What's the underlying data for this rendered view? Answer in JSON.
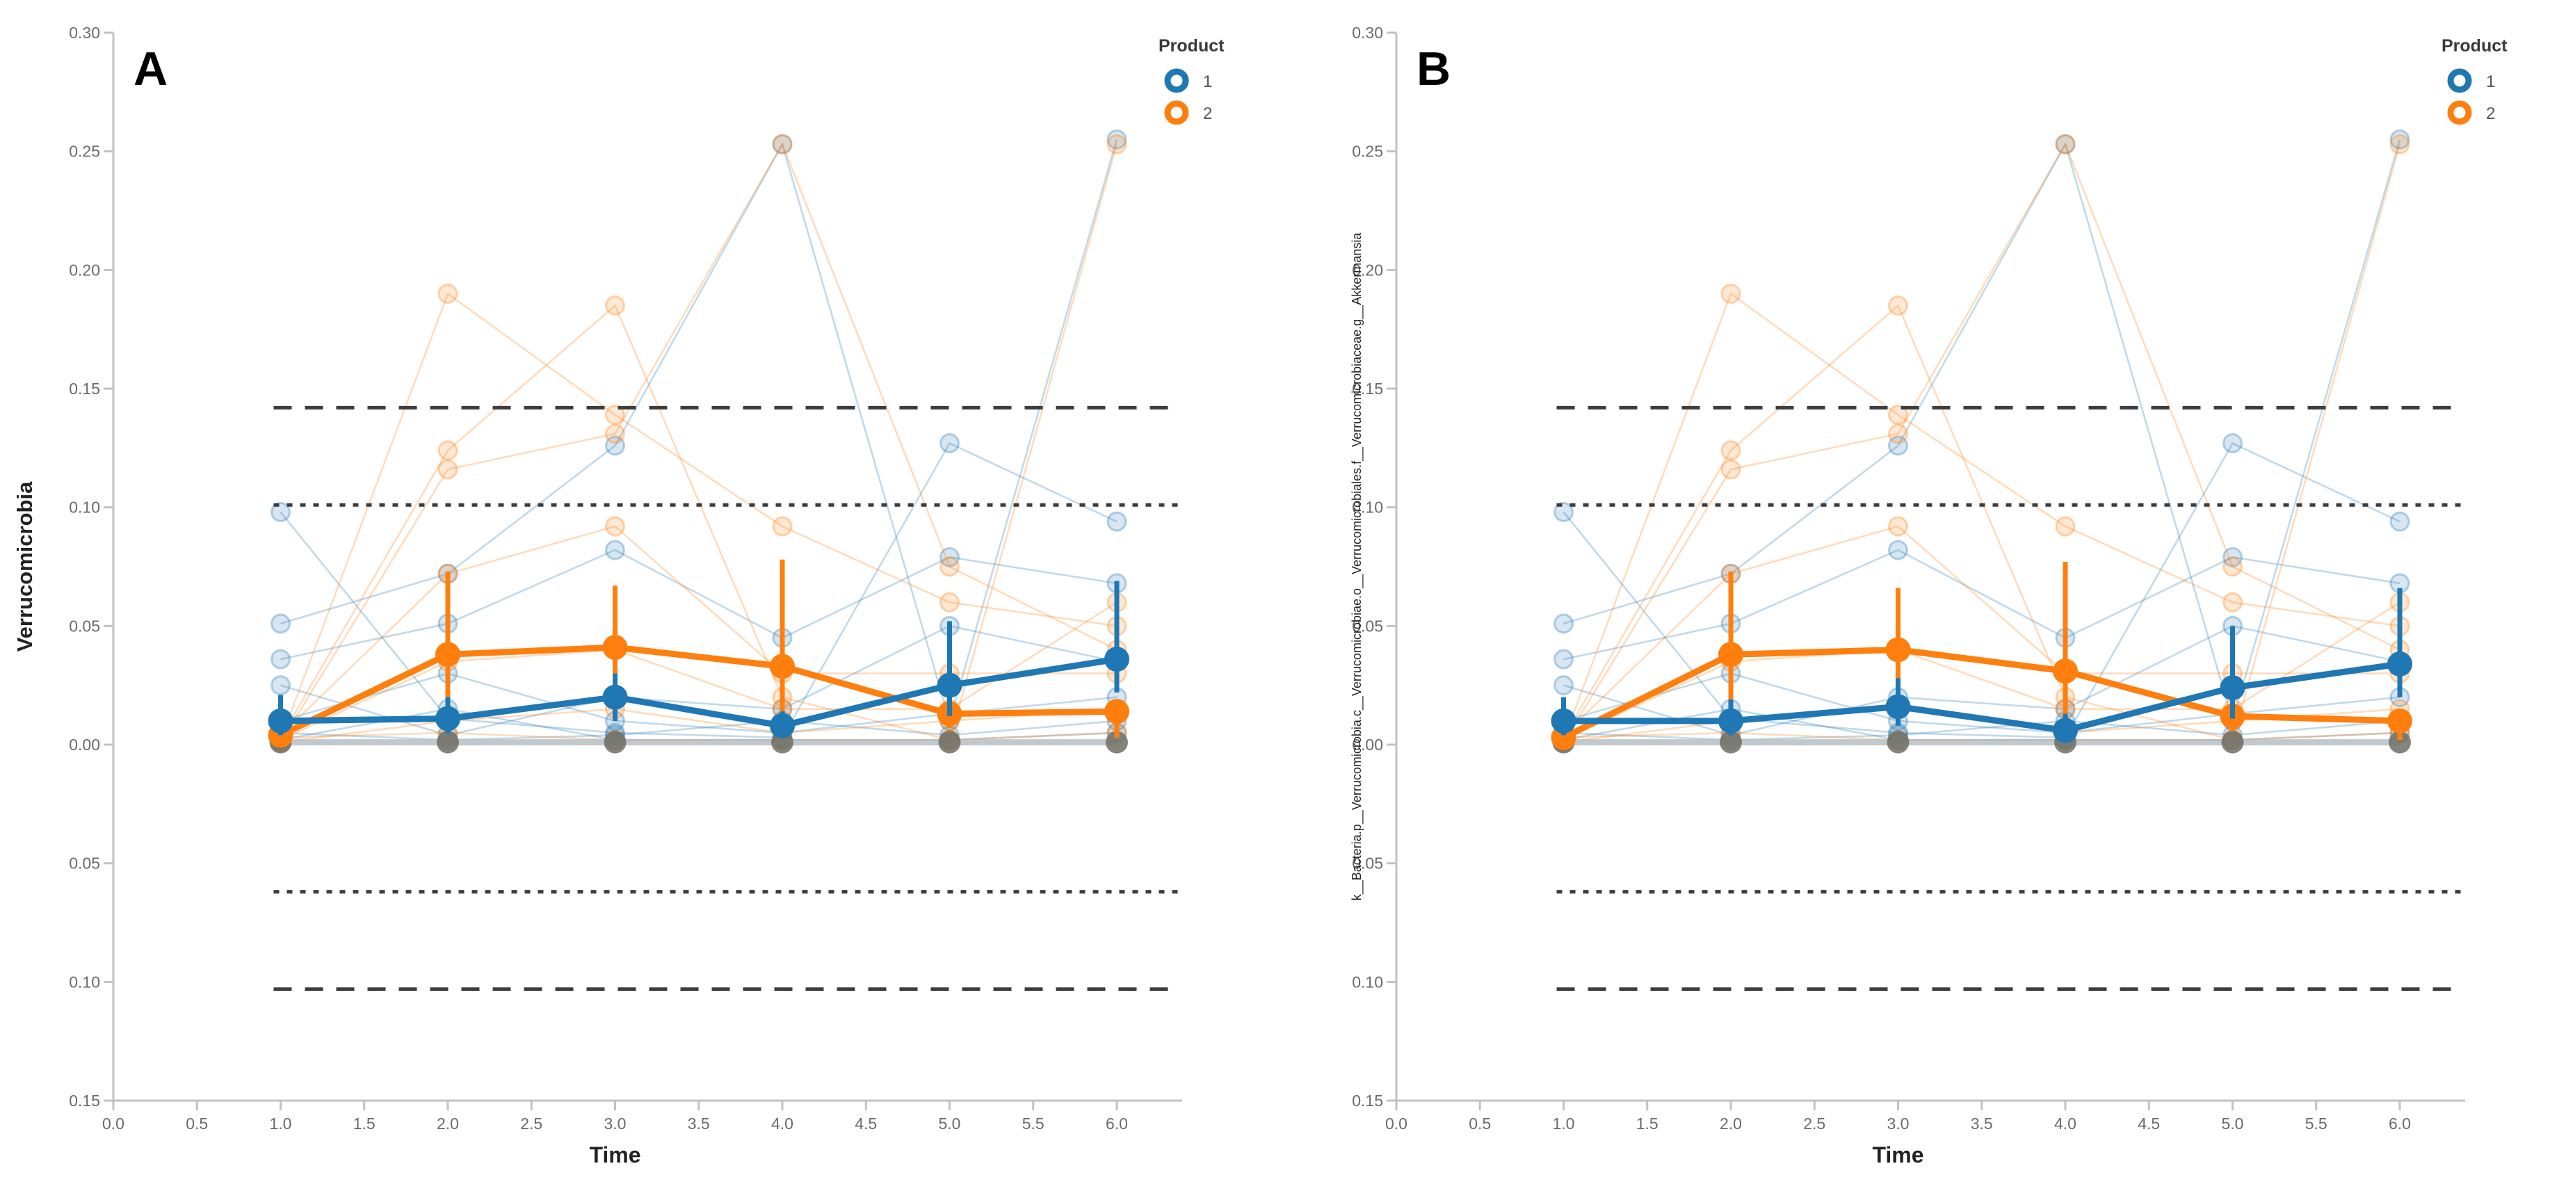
{
  "figure": {
    "colors": {
      "product1": "#1f77b4",
      "product2": "#ff7f0e",
      "overall_line": "#b3bcc2",
      "overall_marker": "#6f6f64",
      "axis": "#c2c2c2",
      "tick_text": "#6a6a6a",
      "reference": "#3c3c3c",
      "panel_label": "#000000"
    }
  },
  "chart_data": [
    {
      "type": "line",
      "panel_label": "A",
      "xlabel": "Time",
      "ylabel": "Verrucomicrobia",
      "ylabel_style": "large-bold",
      "xlim": [
        0,
        6.4
      ],
      "ylim": [
        -0.15,
        0.3
      ],
      "grid": false,
      "legend_position": "top-right",
      "xticks": {
        "values": [
          0,
          0.5,
          1,
          1.5,
          2,
          2.5,
          3,
          3.5,
          4,
          4.5,
          5,
          5.5,
          6
        ],
        "labels": [
          "0.0",
          "0.5",
          "1.0",
          "1.5",
          "2.0",
          "2.5",
          "3.0",
          "3.5",
          "4.0",
          "4.5",
          "5.0",
          "5.5",
          "6.0"
        ]
      },
      "yticks": {
        "values": [
          0.3,
          0.25,
          0.2,
          0.15,
          0.1,
          0.05,
          0.0,
          -0.05,
          -0.1,
          -0.15
        ],
        "labels": [
          "0.30",
          "0.25",
          "0.20",
          "0.15",
          "0.10",
          "0.05",
          "0.00",
          "0.05",
          "0.10",
          "0.15"
        ]
      },
      "x": [
        1,
        2,
        3,
        4,
        5,
        6
      ],
      "series": [
        {
          "name": "Product 1 mean",
          "product": "1",
          "color_key": "product1",
          "values": [
            0.01,
            0.011,
            0.02,
            0.008,
            0.025,
            0.036
          ],
          "err_low": [
            0.004,
            0.005,
            0.01,
            0.003,
            0.012,
            0.022
          ],
          "err_high": [
            0.021,
            0.02,
            0.03,
            0.014,
            0.052,
            0.069
          ]
        },
        {
          "name": "Product 2 mean",
          "product": "2",
          "color_key": "product2",
          "values": [
            0.004,
            0.038,
            0.041,
            0.033,
            0.013,
            0.014
          ],
          "err_low": [
            0.001,
            0.006,
            0.016,
            0.003,
            0.007,
            0.003
          ],
          "err_high": [
            0.007,
            0.073,
            0.067,
            0.078,
            0.022,
            0.018
          ]
        },
        {
          "name": "Overall baseline",
          "product": "all",
          "color_key": "overall",
          "values": [
            0.001,
            0.001,
            0.001,
            0.001,
            0.001,
            0.001
          ]
        }
      ],
      "individuals": {
        "product1": [
          [
            0.098,
            0.011,
            0.005,
            0.003,
            0.127,
            0.094
          ],
          [
            0.051,
            0.072,
            0.126,
            0.253,
            0.01,
            0.255
          ],
          [
            0.036,
            0.051,
            0.082,
            0.045,
            0.079,
            0.068
          ],
          [
            0.025,
            0.004,
            0.02,
            0.015,
            0.05,
            0.035
          ],
          [
            0.01,
            0.03,
            0.01,
            0.005,
            0.013,
            0.02
          ],
          [
            0.005,
            0.002,
            0.004,
            0.01,
            0.004,
            0.01
          ],
          [
            0.002,
            0.015,
            0.002,
            0.002,
            0.002,
            0.005
          ]
        ],
        "product2": [
          [
            0.002,
            0.19,
            0.139,
            0.092,
            0.06,
            0.05
          ],
          [
            0.003,
            0.124,
            0.185,
            0.02,
            0.002,
            0.253
          ],
          [
            0.001,
            0.116,
            0.131,
            0.253,
            0.075,
            0.04
          ],
          [
            0.004,
            0.072,
            0.092,
            0.03,
            0.03,
            0.03
          ],
          [
            0.002,
            0.035,
            0.04,
            0.015,
            0.015,
            0.06
          ],
          [
            0.001,
            0.01,
            0.015,
            0.005,
            0.01,
            0.015
          ],
          [
            0.003,
            0.005,
            0.002,
            0.002,
            0.002,
            0.005
          ]
        ]
      },
      "reference_lines": [
        {
          "y": 0.142,
          "style": "dashed"
        },
        {
          "y": 0.101,
          "style": "dotted"
        },
        {
          "y": -0.062,
          "style": "dotted"
        },
        {
          "y": -0.103,
          "style": "dashed"
        }
      ],
      "legend": {
        "title": "Product",
        "items": [
          {
            "label": "1",
            "color_key": "product1"
          },
          {
            "label": "2",
            "color_key": "product2"
          }
        ]
      }
    },
    {
      "type": "line",
      "panel_label": "B",
      "xlabel": "Time",
      "ylabel": "k__Bacteria.p__Verrucomicrobia.c__Verrucomicrobiae.o__Verrucomicrobiales.f__Verrucomicrobiaceae.g__Akkermansia",
      "ylabel_style": "small",
      "xlim": [
        0,
        6.4
      ],
      "ylim": [
        -0.15,
        0.3
      ],
      "grid": false,
      "legend_position": "top-right",
      "xticks": {
        "values": [
          0,
          0.5,
          1,
          1.5,
          2,
          2.5,
          3,
          3.5,
          4,
          4.5,
          5,
          5.5,
          6
        ],
        "labels": [
          "0.0",
          "0.5",
          "1.0",
          "1.5",
          "2.0",
          "2.5",
          "3.0",
          "3.5",
          "4.0",
          "4.5",
          "5.0",
          "5.5",
          "6.0"
        ]
      },
      "yticks": {
        "values": [
          0.3,
          0.25,
          0.2,
          0.15,
          0.1,
          0.05,
          0.0,
          -0.05,
          -0.1,
          -0.15
        ],
        "labels": [
          "0.30",
          "0.25",
          "0.20",
          "0.15",
          "0.10",
          "0.05",
          "0.00",
          "0.05",
          "0.10",
          "0.15"
        ]
      },
      "x": [
        1,
        2,
        3,
        4,
        5,
        6
      ],
      "series": [
        {
          "name": "Product 1 mean",
          "product": "1",
          "color_key": "product1",
          "values": [
            0.01,
            0.01,
            0.016,
            0.006,
            0.024,
            0.034
          ],
          "err_low": [
            0.004,
            0.004,
            0.008,
            0.002,
            0.011,
            0.02
          ],
          "err_high": [
            0.02,
            0.019,
            0.028,
            0.013,
            0.05,
            0.066
          ]
        },
        {
          "name": "Product 2 mean",
          "product": "2",
          "color_key": "product2",
          "values": [
            0.003,
            0.038,
            0.04,
            0.031,
            0.012,
            0.01
          ],
          "err_low": [
            0.001,
            0.005,
            0.015,
            0.002,
            0.006,
            0.002
          ],
          "err_high": [
            0.006,
            0.073,
            0.066,
            0.077,
            0.02,
            0.015
          ]
        },
        {
          "name": "Overall baseline",
          "product": "all",
          "color_key": "overall",
          "values": [
            0.001,
            0.001,
            0.001,
            0.001,
            0.001,
            0.001
          ]
        }
      ],
      "individuals": {
        "product1": [
          [
            0.098,
            0.011,
            0.005,
            0.003,
            0.127,
            0.094
          ],
          [
            0.051,
            0.072,
            0.126,
            0.253,
            0.01,
            0.255
          ],
          [
            0.036,
            0.051,
            0.082,
            0.045,
            0.079,
            0.068
          ],
          [
            0.025,
            0.004,
            0.02,
            0.015,
            0.05,
            0.035
          ],
          [
            0.01,
            0.03,
            0.01,
            0.005,
            0.013,
            0.02
          ],
          [
            0.005,
            0.002,
            0.004,
            0.01,
            0.004,
            0.01
          ],
          [
            0.002,
            0.015,
            0.002,
            0.002,
            0.002,
            0.005
          ]
        ],
        "product2": [
          [
            0.002,
            0.19,
            0.139,
            0.092,
            0.06,
            0.05
          ],
          [
            0.003,
            0.124,
            0.185,
            0.02,
            0.002,
            0.253
          ],
          [
            0.001,
            0.116,
            0.131,
            0.253,
            0.075,
            0.04
          ],
          [
            0.004,
            0.072,
            0.092,
            0.03,
            0.03,
            0.03
          ],
          [
            0.002,
            0.035,
            0.04,
            0.015,
            0.015,
            0.06
          ],
          [
            0.001,
            0.01,
            0.015,
            0.005,
            0.01,
            0.015
          ],
          [
            0.003,
            0.005,
            0.002,
            0.002,
            0.002,
            0.005
          ]
        ]
      },
      "reference_lines": [
        {
          "y": 0.142,
          "style": "dashed"
        },
        {
          "y": 0.101,
          "style": "dotted"
        },
        {
          "y": -0.062,
          "style": "dotted"
        },
        {
          "y": -0.103,
          "style": "dashed"
        }
      ],
      "legend": {
        "title": "Product",
        "items": [
          {
            "label": "1",
            "color_key": "product1"
          },
          {
            "label": "2",
            "color_key": "product2"
          }
        ]
      }
    }
  ]
}
